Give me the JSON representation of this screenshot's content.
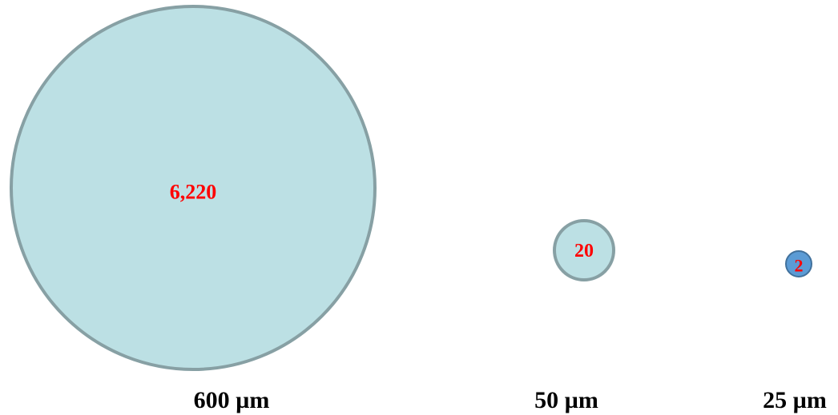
{
  "circles": [
    {
      "value_label": "6,220",
      "size_label": "600 µm",
      "fill": "#bce0e4",
      "stroke": "#87a0a4",
      "text_color": "#ff0000"
    },
    {
      "value_label": "20",
      "size_label": "50 µm",
      "fill": "#bce0e4",
      "stroke": "#87a0a4",
      "text_color": "#ff0000"
    },
    {
      "value_label": "2",
      "size_label": "25 µm",
      "fill": "#5b9bd5",
      "stroke": "#41719c",
      "text_color": "#ff0000"
    }
  ]
}
